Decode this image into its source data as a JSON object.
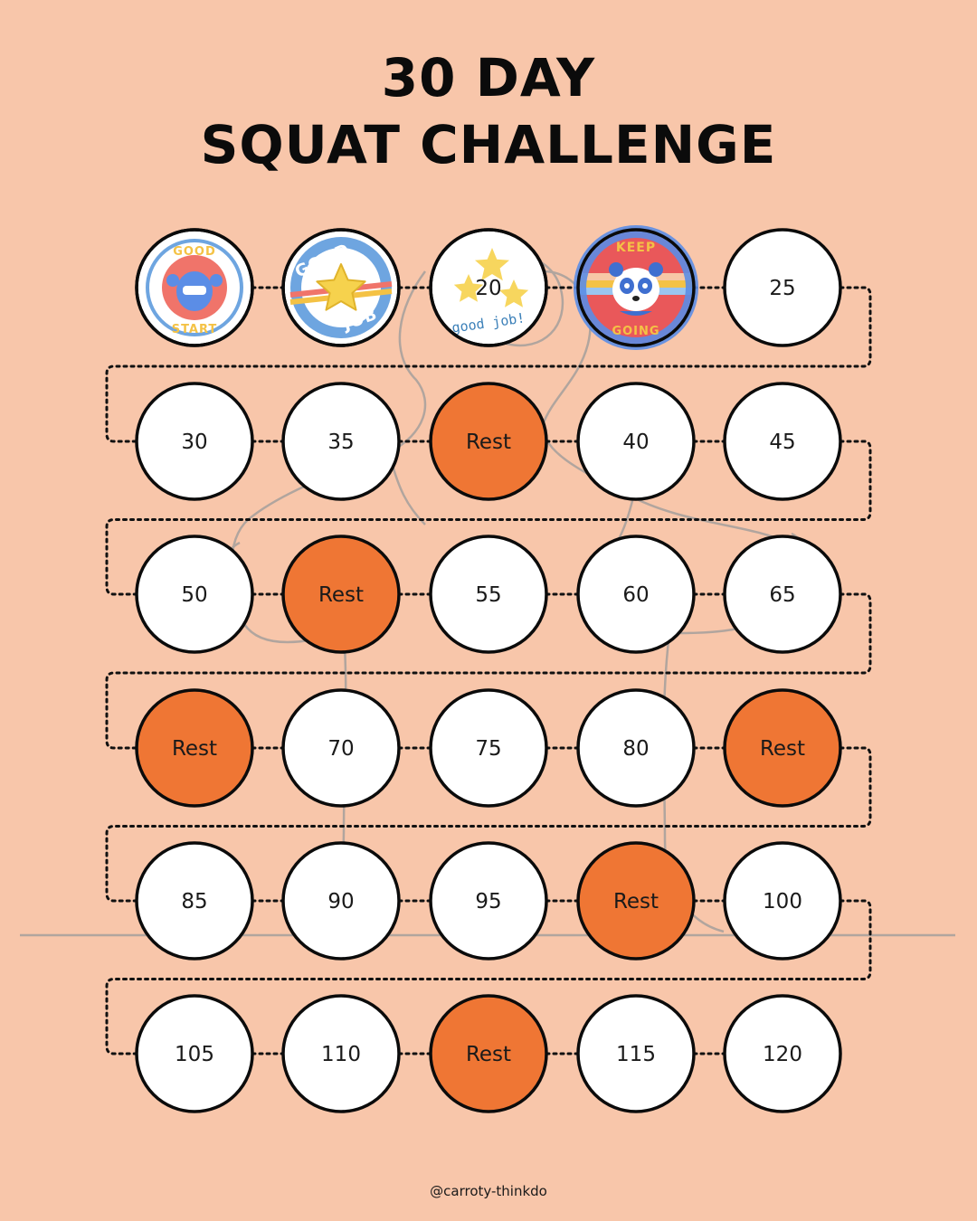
{
  "title": {
    "line1": "30 DAY",
    "line2": "SQUAT CHALLENGE"
  },
  "credit": "@carroty-thinkdo",
  "colors": {
    "background": "#f8c6aa",
    "rest": "#ef7634",
    "circle": "#ffffff",
    "outline": "#0b0b0b"
  },
  "days": [
    {
      "label": "",
      "type": "badge",
      "badge": "good-start-sticker",
      "badge_text": [
        "GOOD",
        "START"
      ]
    },
    {
      "label": "",
      "type": "badge",
      "badge": "good-job-star-sticker",
      "badge_text": [
        "GOOD",
        "JOB"
      ]
    },
    {
      "label": "20",
      "type": "badge",
      "badge": "stars-good-job-sticker",
      "badge_text": [
        "good job!"
      ]
    },
    {
      "label": "",
      "type": "badge",
      "badge": "keep-going-panda-sticker",
      "badge_text": [
        "KEEP",
        "GOING"
      ]
    },
    {
      "label": "25",
      "type": "count"
    },
    {
      "label": "30",
      "type": "count"
    },
    {
      "label": "35",
      "type": "count"
    },
    {
      "label": "Rest",
      "type": "rest"
    },
    {
      "label": "40",
      "type": "count"
    },
    {
      "label": "45",
      "type": "count"
    },
    {
      "label": "50",
      "type": "count"
    },
    {
      "label": "Rest",
      "type": "rest"
    },
    {
      "label": "55",
      "type": "count"
    },
    {
      "label": "60",
      "type": "count"
    },
    {
      "label": "65",
      "type": "count"
    },
    {
      "label": "Rest",
      "type": "rest"
    },
    {
      "label": "70",
      "type": "count"
    },
    {
      "label": "75",
      "type": "count"
    },
    {
      "label": "80",
      "type": "count"
    },
    {
      "label": "Rest",
      "type": "rest"
    },
    {
      "label": "85",
      "type": "count"
    },
    {
      "label": "90",
      "type": "count"
    },
    {
      "label": "95",
      "type": "count"
    },
    {
      "label": "Rest",
      "type": "rest"
    },
    {
      "label": "100",
      "type": "count"
    },
    {
      "label": "105",
      "type": "count"
    },
    {
      "label": "110",
      "type": "count"
    },
    {
      "label": "Rest",
      "type": "rest"
    },
    {
      "label": "115",
      "type": "count"
    },
    {
      "label": "120",
      "type": "count"
    }
  ]
}
